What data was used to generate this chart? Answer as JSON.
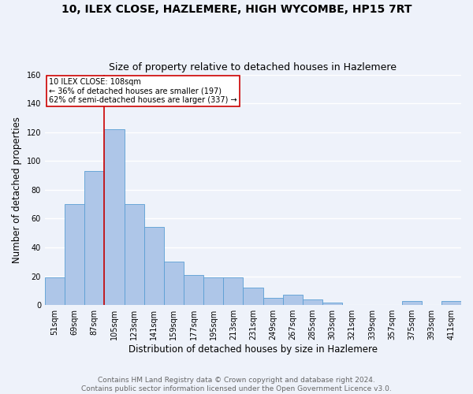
{
  "title": "10, ILEX CLOSE, HAZLEMERE, HIGH WYCOMBE, HP15 7RT",
  "subtitle": "Size of property relative to detached houses in Hazlemere",
  "xlabel": "Distribution of detached houses by size in Hazlemere",
  "ylabel": "Number of detached properties",
  "footer_line1": "Contains HM Land Registry data © Crown copyright and database right 2024.",
  "footer_line2": "Contains public sector information licensed under the Open Government Licence v3.0.",
  "bin_labels": [
    "51sqm",
    "69sqm",
    "87sqm",
    "105sqm",
    "123sqm",
    "141sqm",
    "159sqm",
    "177sqm",
    "195sqm",
    "213sqm",
    "231sqm",
    "249sqm",
    "267sqm",
    "285sqm",
    "303sqm",
    "321sqm",
    "339sqm",
    "357sqm",
    "375sqm",
    "393sqm",
    "411sqm"
  ],
  "bar_values": [
    19,
    70,
    93,
    122,
    70,
    54,
    30,
    21,
    19,
    19,
    12,
    5,
    7,
    4,
    2,
    0,
    0,
    0,
    3,
    0,
    3
  ],
  "bar_color": "#aec6e8",
  "bar_edge_color": "#5a9fd4",
  "vline_color": "#cc0000",
  "vline_x_index": 3,
  "annotation_text": "10 ILEX CLOSE: 108sqm\n← 36% of detached houses are smaller (197)\n62% of semi-detached houses are larger (337) →",
  "annotation_box_color": "#ffffff",
  "annotation_box_edge": "#cc0000",
  "ylim": [
    0,
    160
  ],
  "yticks": [
    0,
    20,
    40,
    60,
    80,
    100,
    120,
    140,
    160
  ],
  "background_color": "#eef2fa",
  "grid_color": "#ffffff",
  "title_fontsize": 10,
  "subtitle_fontsize": 9,
  "axis_label_fontsize": 8.5,
  "tick_fontsize": 7,
  "footer_fontsize": 6.5
}
